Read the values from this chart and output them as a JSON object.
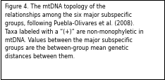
{
  "text": "Figure 4. The mtDNA topology of the\nrelationships among the six major subspecific\ngroups, following Puebla-Olivares et al. (2008).\nTaxa labeled with a “(+)” are non-monophyletic in\nmtDNA. Values between the major subspecific\ngroups are the between-group mean genetic\ndistances between them.",
  "background_color": "#ffffff",
  "border_color": "#000000",
  "font_size": 5.55,
  "font_family": "DejaVu Sans",
  "text_color": "#000000",
  "fig_width": 2.34,
  "fig_height": 1.15,
  "dpi": 100
}
